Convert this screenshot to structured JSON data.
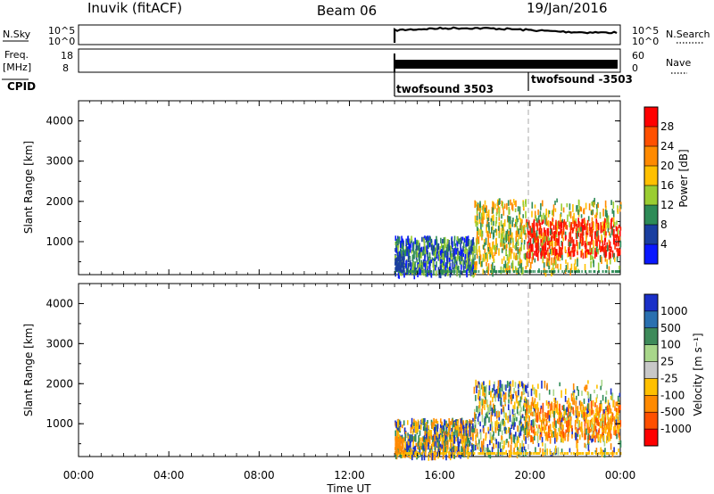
{
  "header": {
    "station": "Inuvik (fitACF)",
    "beam": "Beam 06",
    "date": "19/Jan/2016"
  },
  "strips": {
    "nsky_label": "N.Sky",
    "nsky_ticks": [
      "10^5",
      "10^0"
    ],
    "nsearch_label": "N.Search",
    "nsearch_ticks": [
      "10^5",
      "10^0"
    ],
    "freq_label": "Freq.",
    "freq_unit": "[MHz]",
    "freq_ticks": [
      "18",
      "8"
    ],
    "nave_label": "Nave",
    "nave_ticks": [
      "60",
      "0"
    ],
    "cpid_label": "CPID",
    "cpid_segments": [
      "twofsound 3503",
      "twofsound -3503"
    ]
  },
  "chart_data": [
    {
      "type": "heatmap",
      "name": "power",
      "xlabel": "",
      "ylabel": "Slant Range [km]",
      "x_range_hours": [
        0,
        24
      ],
      "ylim": [
        180,
        4500
      ],
      "y_ticks": [
        "4000",
        "3000",
        "2000",
        "1000"
      ],
      "y_tick_values": [
        4000,
        3000,
        2000,
        1000
      ],
      "colorbar_label": "Power [dB]",
      "colorbar_ticks": [
        "28",
        "24",
        "20",
        "16",
        "12",
        "8",
        "4"
      ],
      "colorbar_colors": [
        "#ff0000",
        "#ff5000",
        "#ff8a00",
        "#ffc000",
        "#9acd32",
        "#2e8b57",
        "#1a3fa0",
        "#0a18ff"
      ],
      "data_start_hour": 14.0,
      "dashed_marker_hour": 20.0
    },
    {
      "type": "heatmap",
      "name": "velocity",
      "xlabel": "Time UT",
      "ylabel": "Slant Range [km]",
      "x_range_hours": [
        0,
        24
      ],
      "ylim": [
        180,
        4500
      ],
      "y_ticks": [
        "4000",
        "3000",
        "2000",
        "1000"
      ],
      "y_tick_values": [
        4000,
        3000,
        2000,
        1000
      ],
      "colorbar_label": "Velocity [m s⁻¹]",
      "colorbar_ticks": [
        "1000",
        "500",
        "100",
        "25",
        "-25",
        "-100",
        "-500",
        "-1000"
      ],
      "colorbar_colors": [
        "#1a30c8",
        "#2a70b0",
        "#3e8a5a",
        "#a8d68a",
        "#c8c8c8",
        "#ffc000",
        "#ff8a00",
        "#ff5000",
        "#ff0000"
      ],
      "data_start_hour": 14.0,
      "dashed_marker_hour": 20.0
    }
  ],
  "x_ticks": [
    "00:00",
    "04:00",
    "08:00",
    "12:00",
    "16:00",
    "20:00",
    "00:00"
  ],
  "x_tick_hours": [
    0,
    4,
    8,
    12,
    16,
    20,
    24
  ]
}
